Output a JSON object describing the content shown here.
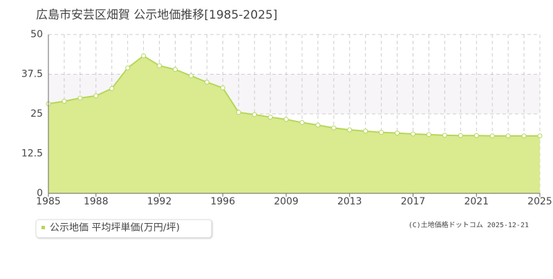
{
  "chart_data": {
    "type": "area",
    "title": "広島市安芸区畑賀 公示地価推移[1985-2025]",
    "categories": [
      "1985",
      null,
      null,
      "1988",
      null,
      null,
      null,
      "1992",
      null,
      null,
      null,
      "1996",
      null,
      null,
      null,
      "2009",
      null,
      null,
      null,
      "2013",
      null,
      null,
      null,
      "2017",
      null,
      null,
      null,
      "2021",
      null,
      null,
      null,
      "2025"
    ],
    "series": [
      {
        "name": "公示地価 平均坪単価(万円/坪)",
        "color": "#b5d65a",
        "values": [
          28.2,
          29,
          30,
          30.7,
          33,
          39.5,
          43.3,
          40.2,
          39,
          37,
          35,
          33.2,
          25.5,
          24.8,
          24,
          23.3,
          22.3,
          21.5,
          20.6,
          20,
          19.6,
          19.2,
          19,
          18.7,
          18.5,
          18.3,
          18.2,
          18.2,
          18.1,
          18.1,
          18.1,
          18.1
        ]
      }
    ],
    "ylim": [
      0,
      50
    ],
    "yticks": [
      0,
      12.5,
      25,
      37.5,
      50
    ],
    "grid": true,
    "grid_bands": true,
    "legend": "bottom-left",
    "credit": "(C)土地価格ドットコム 2025-12-21"
  }
}
